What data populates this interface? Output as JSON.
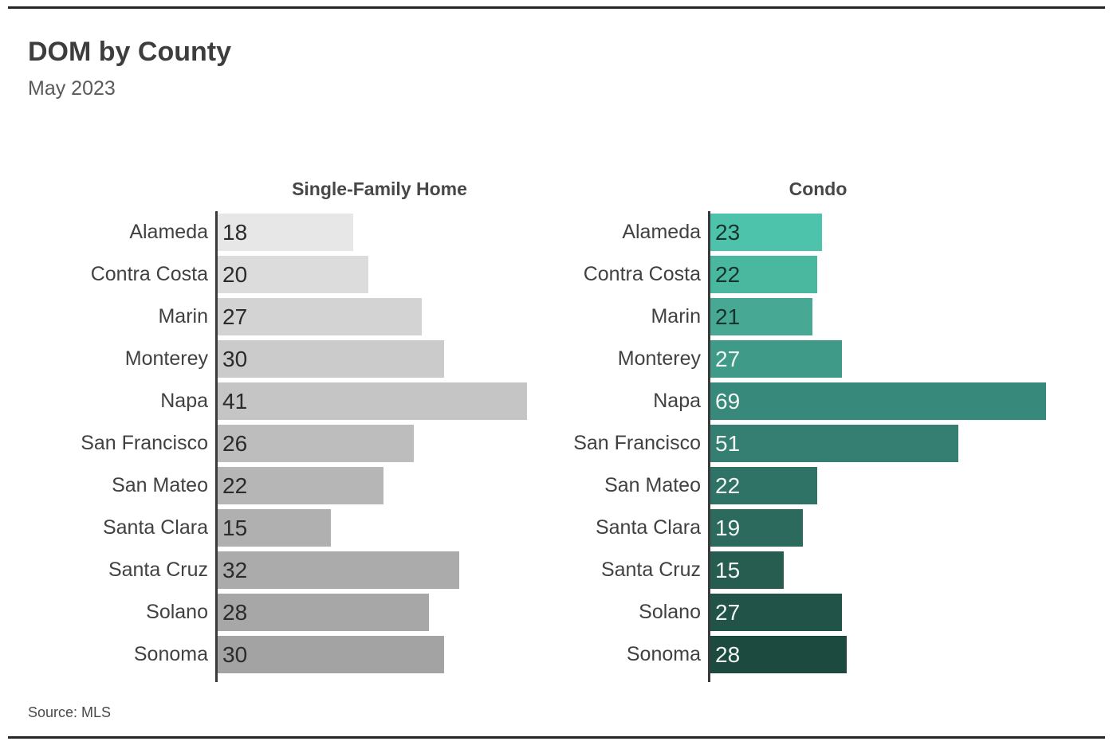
{
  "page": {
    "title": "DOM by County",
    "subtitle": "May 2023",
    "source": "Source:  MLS"
  },
  "chart_data": {
    "type": "bar",
    "orientation": "horizontal",
    "title": "DOM by County",
    "subtitle": "May 2023",
    "source": "Source: MLS",
    "grid": false,
    "value_labels_shown": true,
    "categories": [
      "Alameda",
      "Contra Costa",
      "Marin",
      "Monterey",
      "Napa",
      "San Francisco",
      "San Mateo",
      "Santa Clara",
      "Santa Cruz",
      "Solano",
      "Sonoma"
    ],
    "series": [
      {
        "name": "Single-Family Home",
        "values": [
          18,
          20,
          27,
          30,
          41,
          26,
          22,
          15,
          32,
          28,
          30
        ],
        "xlim": [
          0,
          41
        ],
        "bar_colors": [
          "#e7e7e7",
          "#dcdcdc",
          "#d3d3d3",
          "#cbcbcb",
          "#c5c5c5",
          "#bdbdbd",
          "#b6b6b6",
          "#b0b0b0",
          "#ababab",
          "#a7a7a7",
          "#a3a3a3"
        ],
        "value_text_colors": [
          "#2b2b2b",
          "#2b2b2b",
          "#2b2b2b",
          "#2b2b2b",
          "#2b2b2b",
          "#2b2b2b",
          "#2b2b2b",
          "#2b2b2b",
          "#2b2b2b",
          "#2b2b2b",
          "#2b2b2b"
        ]
      },
      {
        "name": "Condo",
        "values": [
          23,
          22,
          21,
          27,
          69,
          51,
          22,
          19,
          15,
          27,
          28
        ],
        "xlim": [
          0,
          69
        ],
        "bar_colors": [
          "#4ec3ab",
          "#49b89f",
          "#47a994",
          "#3f9a87",
          "#37897b",
          "#347f72",
          "#2f7366",
          "#2c6a5d",
          "#275d51",
          "#225348",
          "#1d4a3e"
        ],
        "value_text_colors": [
          "#17332d",
          "#17332d",
          "#17332d",
          "#f2f6f4",
          "#f2f6f4",
          "#f2f6f4",
          "#f2f6f4",
          "#f2f6f4",
          "#f2f6f4",
          "#f2f6f4",
          "#f2f6f4"
        ]
      }
    ]
  },
  "colors": {
    "rule": "#262626",
    "axis": "#3a3a3a",
    "title_text": "#3d3d3d",
    "subtitle_text": "#5a5a5a",
    "label_text": "#414141"
  }
}
